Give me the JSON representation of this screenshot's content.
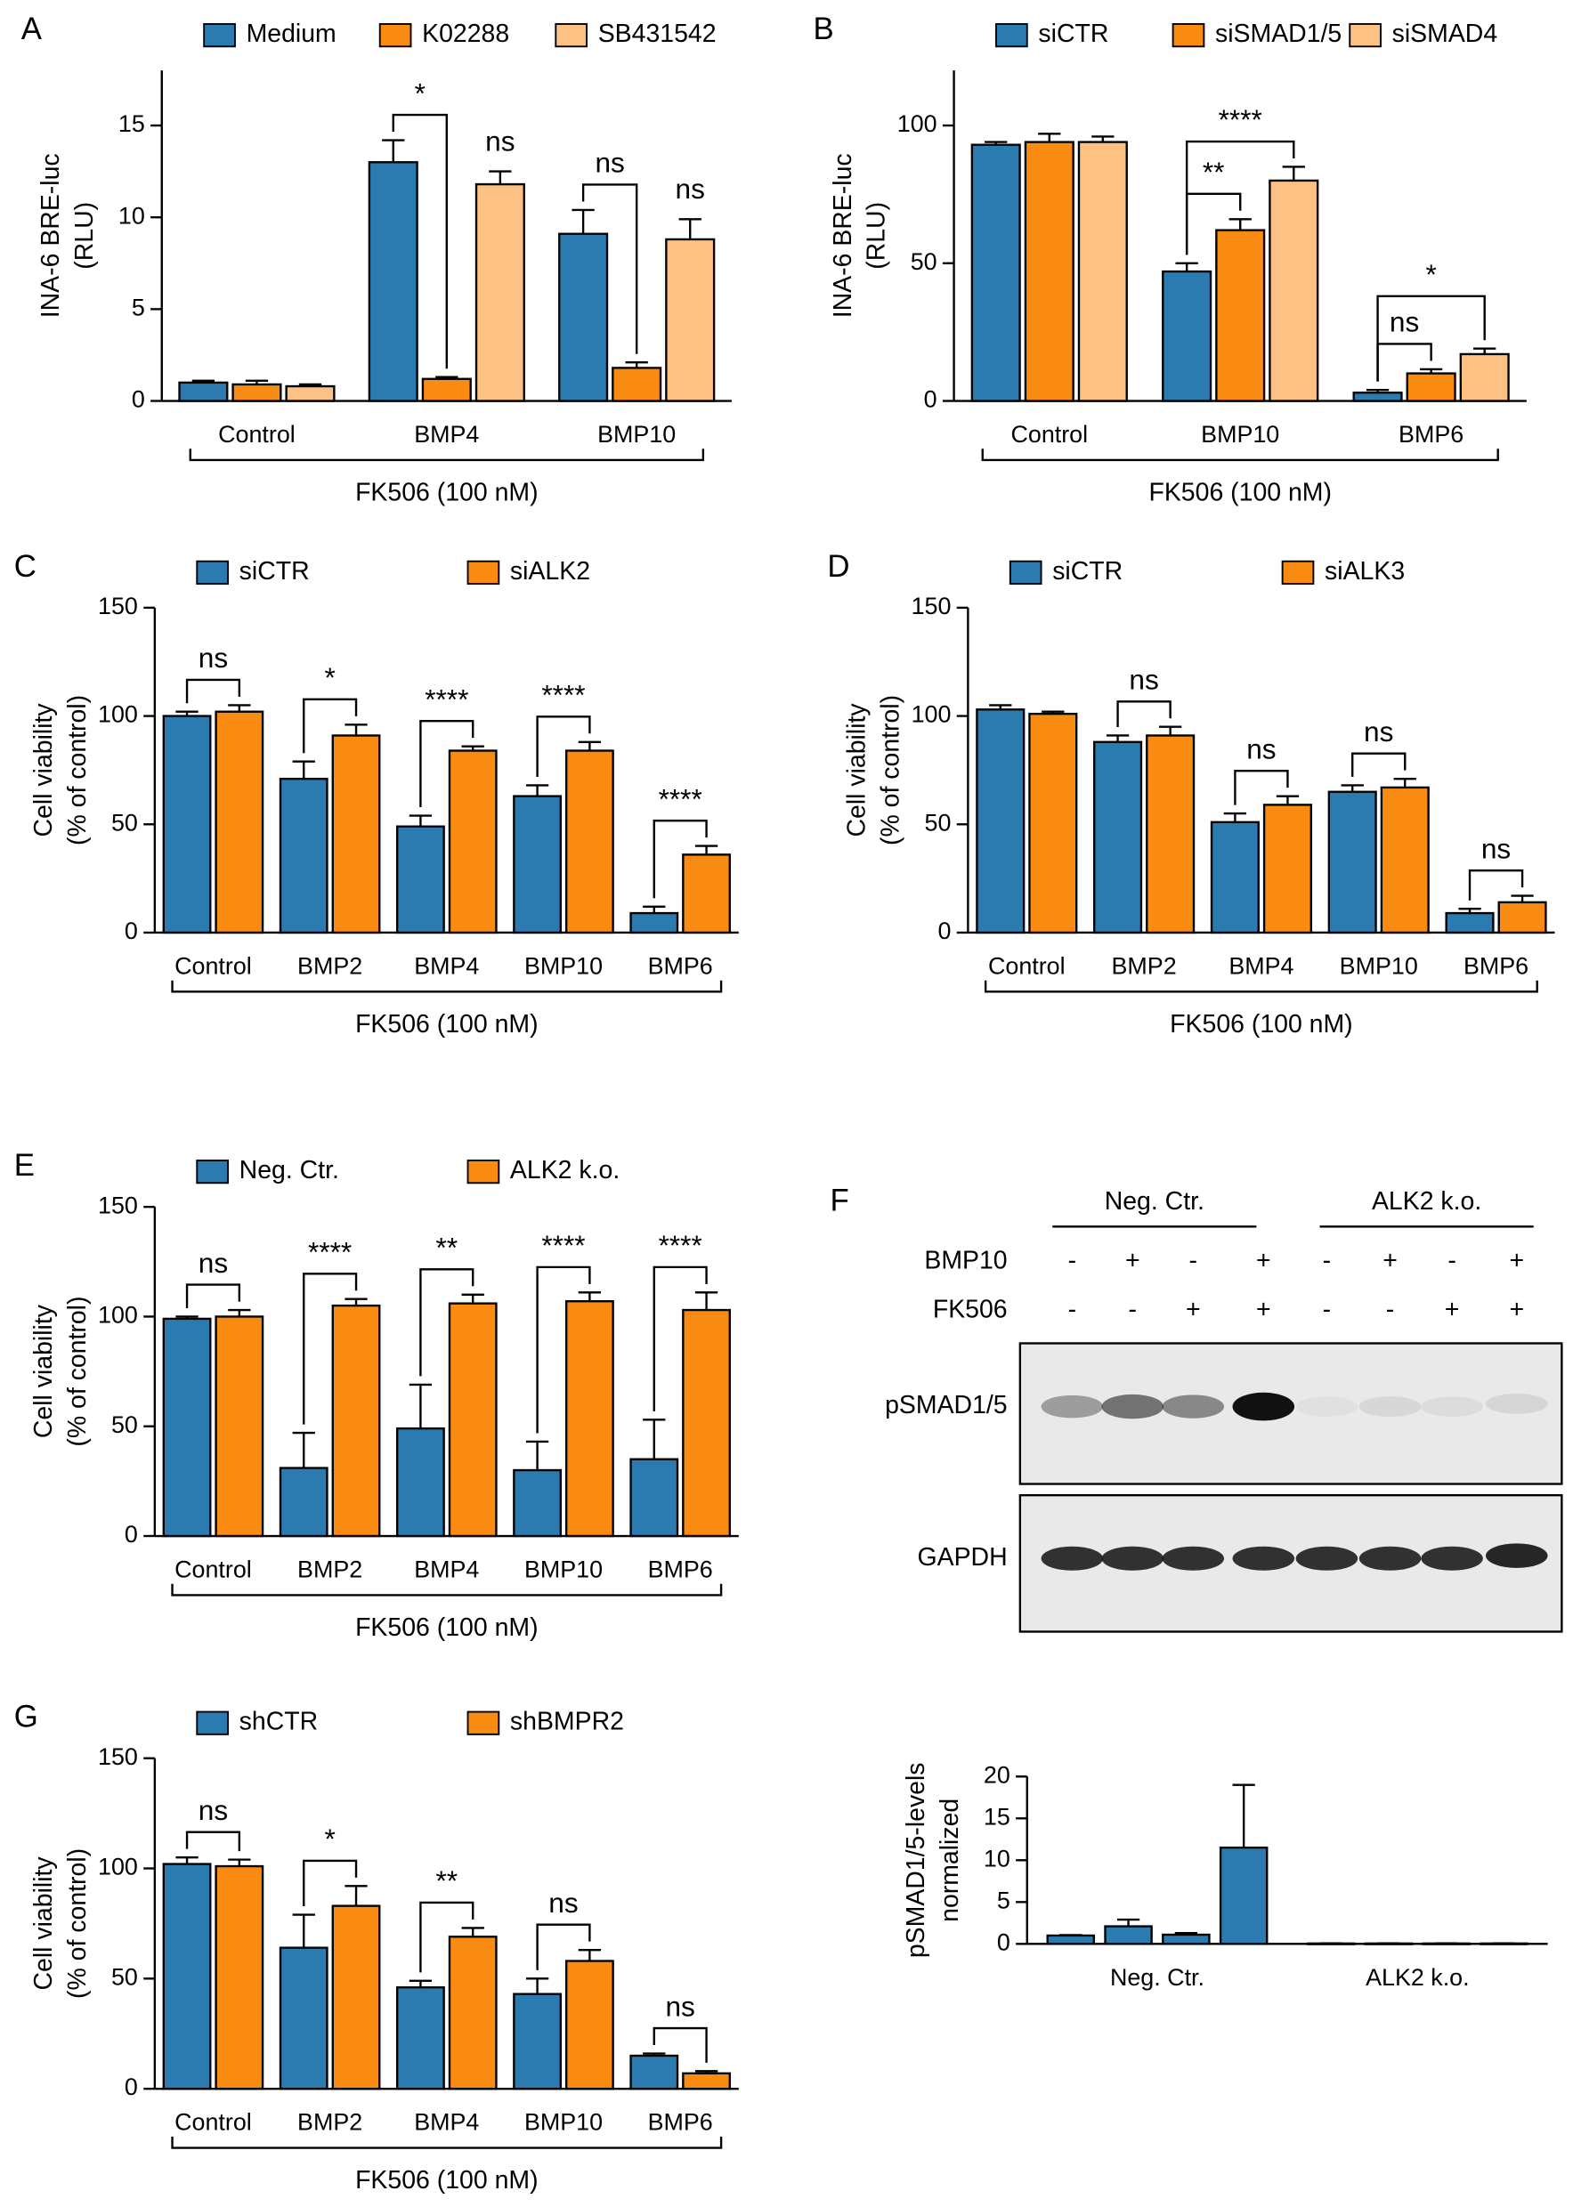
{
  "chart_data": [
    {
      "type": "bar",
      "panel": "A",
      "ylabel": [
        "INA-6 BRE-luc",
        "(RLU)"
      ],
      "ylim": [
        0,
        18
      ],
      "yticks": [
        0,
        5,
        10,
        15
      ],
      "categories": [
        "Control",
        "BMP4",
        "BMP10"
      ],
      "xgroup_label": "FK506 (100 nM)",
      "series": [
        {
          "name": "Medium",
          "color": "#2b7bb0",
          "values": [
            1.0,
            13.0,
            9.1
          ],
          "errors": [
            0.1,
            1.2,
            1.3
          ]
        },
        {
          "name": "K02288",
          "color": "#f98a12",
          "values": [
            0.9,
            1.2,
            1.8
          ],
          "errors": [
            0.2,
            0.1,
            0.3
          ],
          "significance": [
            null,
            "*",
            "ns"
          ],
          "bracket": true
        },
        {
          "name": "SB431542",
          "color": "#fdc283",
          "values": [
            0.8,
            11.8,
            8.8
          ],
          "errors": [
            0.1,
            0.7,
            1.1
          ],
          "significance": [
            null,
            "ns",
            "ns"
          ],
          "bracket": false
        }
      ]
    },
    {
      "type": "bar",
      "panel": "B",
      "ylabel": [
        "INA-6 BRE-luc",
        "(RLU)"
      ],
      "ylim": [
        0,
        120
      ],
      "yticks": [
        0,
        50,
        100
      ],
      "categories": [
        "Control",
        "BMP10",
        "BMP6"
      ],
      "xgroup_label": "FK506 (100 nM)",
      "series": [
        {
          "name": "siCTR",
          "color": "#2b7bb0",
          "values": [
            93,
            47,
            3
          ],
          "errors": [
            1,
            3,
            1
          ]
        },
        {
          "name": "siSMAD1/5",
          "color": "#f98a12",
          "values": [
            94,
            62,
            10
          ],
          "errors": [
            3,
            4,
            1.5
          ],
          "significance": [
            null,
            "**",
            "ns"
          ],
          "bracket": true
        },
        {
          "name": "siSMAD4",
          "color": "#fdc283",
          "values": [
            94,
            80,
            17
          ],
          "errors": [
            2,
            5,
            2
          ],
          "significance": [
            null,
            "****",
            "*"
          ],
          "bracket": true
        }
      ]
    },
    {
      "type": "bar",
      "panel": "C",
      "ylabel": [
        "Cell viability",
        "(% of control)"
      ],
      "ylim": [
        0,
        150
      ],
      "yticks": [
        0,
        50,
        100,
        150
      ],
      "categories": [
        "Control",
        "BMP2",
        "BMP4",
        "BMP10",
        "BMP6"
      ],
      "xgroup_label": "FK506 (100 nM)",
      "series": [
        {
          "name": "siCTR",
          "color": "#2b7bb0",
          "values": [
            100,
            71,
            49,
            63,
            9
          ],
          "errors": [
            2,
            8,
            5,
            5,
            3
          ]
        },
        {
          "name": "siALK2",
          "color": "#f98a12",
          "values": [
            102,
            91,
            84,
            84,
            36
          ],
          "errors": [
            3,
            5,
            2,
            4,
            4
          ],
          "significance": [
            "ns",
            "*",
            "****",
            "****",
            "****"
          ],
          "bracket": true
        }
      ]
    },
    {
      "type": "bar",
      "panel": "D",
      "ylabel": [
        "Cell viability",
        "(% of control)"
      ],
      "ylim": [
        0,
        150
      ],
      "yticks": [
        0,
        50,
        100,
        150
      ],
      "categories": [
        "Control",
        "BMP2",
        "BMP4",
        "BMP10",
        "BMP6"
      ],
      "xgroup_label": "FK506 (100 nM)",
      "series": [
        {
          "name": "siCTR",
          "color": "#2b7bb0",
          "values": [
            103,
            88,
            51,
            65,
            9
          ],
          "errors": [
            2,
            3,
            4,
            3,
            2
          ]
        },
        {
          "name": "siALK3",
          "color": "#f98a12",
          "values": [
            101,
            91,
            59,
            67,
            14
          ],
          "errors": [
            1,
            4,
            4,
            4,
            3
          ],
          "significance": [
            null,
            "ns",
            "ns",
            "ns",
            "ns"
          ],
          "bracket": true
        }
      ]
    },
    {
      "type": "bar",
      "panel": "E",
      "ylabel": [
        "Cell viability",
        "(% of control)"
      ],
      "ylim": [
        0,
        150
      ],
      "yticks": [
        0,
        50,
        100,
        150
      ],
      "categories": [
        "Control",
        "BMP2",
        "BMP4",
        "BMP10",
        "BMP6"
      ],
      "xgroup_label": "FK506 (100 nM)",
      "series": [
        {
          "name": "Neg. Ctr.",
          "color": "#2b7bb0",
          "values": [
            99,
            31,
            49,
            30,
            35
          ],
          "errors": [
            1,
            16,
            20,
            13,
            18
          ]
        },
        {
          "name": "ALK2 k.o.",
          "color": "#f98a12",
          "values": [
            100,
            105,
            106,
            107,
            103
          ],
          "errors": [
            3,
            3,
            4,
            4,
            8
          ],
          "significance": [
            "ns",
            "****",
            "**",
            "****",
            "****"
          ],
          "bracket": true
        }
      ]
    },
    {
      "type": "bar_groups",
      "ylabel": [
        "pSMAD1/5-levels",
        "normalized"
      ],
      "ylim": [
        0,
        20
      ],
      "yticks": [
        0,
        5,
        10,
        15,
        20
      ],
      "categories": [
        "Neg. Ctr.",
        "ALK2 k.o."
      ],
      "color": "#2b7bb0",
      "values": [
        [
          1.0,
          2.1,
          1.1,
          11.5
        ],
        [
          0.05,
          0.05,
          0.05,
          0.05
        ]
      ],
      "errors": [
        [
          0.05,
          0.8,
          0.2,
          7.5
        ],
        [
          0.02,
          0.02,
          0.02,
          0.02
        ]
      ]
    },
    {
      "type": "bar",
      "panel": "G",
      "ylabel": [
        "Cell viability",
        "(% of control)"
      ],
      "ylim": [
        0,
        150
      ],
      "yticks": [
        0,
        50,
        100,
        150
      ],
      "categories": [
        "Control",
        "BMP2",
        "BMP4",
        "BMP10",
        "BMP6"
      ],
      "xgroup_label": "FK506 (100 nM)",
      "series": [
        {
          "name": "shCTR",
          "color": "#2b7bb0",
          "values": [
            102,
            64,
            46,
            43,
            15
          ],
          "errors": [
            3,
            15,
            3,
            7,
            1
          ]
        },
        {
          "name": "shBMPR2",
          "color": "#f98a12",
          "values": [
            101,
            83,
            69,
            58,
            7
          ],
          "errors": [
            3,
            9,
            4,
            5,
            1
          ],
          "significance": [
            "ns",
            "*",
            "**",
            "ns",
            "ns"
          ],
          "bracket": true
        }
      ]
    }
  ],
  "blot": {
    "panel": "F",
    "groups": [
      "Neg. Ctr.",
      "ALK2 k.o."
    ],
    "rows": [
      {
        "label": "BMP10",
        "marks": [
          "-",
          "+",
          "-",
          "+",
          "-",
          "+",
          "-",
          "+"
        ]
      },
      {
        "label": "FK506",
        "marks": [
          "-",
          "-",
          "+",
          "+",
          "-",
          "-",
          "+",
          "+"
        ]
      }
    ],
    "bands": [
      "pSMAD1/5",
      "GAPDH"
    ]
  }
}
